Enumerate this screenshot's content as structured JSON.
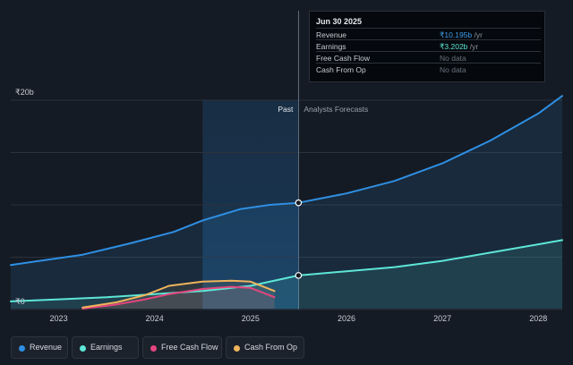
{
  "colors": {
    "background": "#151b24",
    "revenue": "#2f8fe3",
    "earnings": "#5ee6d6",
    "free_cash_flow": "#e4457e",
    "cash_from_op": "#f0b45c",
    "past_highlight": "#1b3d5e"
  },
  "tooltip": {
    "date": "Jun 30 2025",
    "rows": [
      {
        "label": "Revenue",
        "value": "₹10.195b",
        "unit": " /yr"
      },
      {
        "label": "Earnings",
        "value": "₹3.202b",
        "unit": " /yr"
      },
      {
        "label": "Free Cash Flow",
        "value": "No data"
      },
      {
        "label": "Cash From Op",
        "value": "No data"
      }
    ]
  },
  "chart_labels": {
    "past": "Past",
    "forecast": "Analysts Forecasts"
  },
  "legend": [
    {
      "label": "Revenue",
      "color": "#2f8fe3"
    },
    {
      "label": "Earnings",
      "color": "#5ee6d6"
    },
    {
      "label": "Free Cash Flow",
      "color": "#e4457e"
    },
    {
      "label": "Cash From Op",
      "color": "#f0b45c"
    }
  ],
  "chart_data": {
    "type": "line",
    "title": "",
    "xlabel": "",
    "ylabel": "",
    "y_unit": "₹b",
    "ylim": [
      0,
      20
    ],
    "y_ticks": [
      {
        "value": 0,
        "label": "₹0"
      },
      {
        "value": 20,
        "label": "₹20b"
      }
    ],
    "xlim": [
      2022.5,
      2028.25
    ],
    "x_ticks": [
      2023,
      2024,
      2025,
      2026,
      2027,
      2028
    ],
    "x_tick_labels": [
      "2023",
      "2024",
      "2025",
      "2026",
      "2027",
      "2028"
    ],
    "grid": true,
    "past_region": [
      2024.5,
      2025.5
    ],
    "split_x": 2025.5,
    "series": [
      {
        "name": "Revenue",
        "color": "#2f8fe3",
        "area": true,
        "points": [
          [
            2022.5,
            4.2
          ],
          [
            2022.8,
            4.6
          ],
          [
            2023.25,
            5.2
          ],
          [
            2023.75,
            6.3
          ],
          [
            2024.2,
            7.4
          ],
          [
            2024.5,
            8.5
          ],
          [
            2024.9,
            9.6
          ],
          [
            2025.2,
            10.0
          ],
          [
            2025.5,
            10.2
          ]
        ],
        "forecast": [
          [
            2025.5,
            10.2
          ],
          [
            2026.0,
            11.1
          ],
          [
            2026.5,
            12.3
          ],
          [
            2027.0,
            14.0
          ],
          [
            2027.5,
            16.2
          ],
          [
            2028.0,
            18.8
          ],
          [
            2028.25,
            20.5
          ]
        ]
      },
      {
        "name": "Earnings",
        "color": "#5ee6d6",
        "area": true,
        "points": [
          [
            2022.5,
            0.7
          ],
          [
            2023.0,
            0.9
          ],
          [
            2023.5,
            1.1
          ],
          [
            2024.0,
            1.4
          ],
          [
            2024.5,
            1.7
          ],
          [
            2025.0,
            2.2
          ],
          [
            2025.5,
            3.2
          ]
        ],
        "forecast": [
          [
            2025.5,
            3.2
          ],
          [
            2026.0,
            3.6
          ],
          [
            2026.5,
            4.0
          ],
          [
            2027.0,
            4.6
          ],
          [
            2027.5,
            5.4
          ],
          [
            2028.0,
            6.2
          ],
          [
            2028.25,
            6.6
          ]
        ]
      },
      {
        "name": "Free Cash Flow",
        "color": "#e4457e",
        "points": [
          [
            2023.25,
            0.0
          ],
          [
            2023.6,
            0.4
          ],
          [
            2023.9,
            0.9
          ],
          [
            2024.15,
            1.4
          ],
          [
            2024.5,
            1.9
          ],
          [
            2024.8,
            2.1
          ],
          [
            2025.0,
            2.0
          ],
          [
            2025.25,
            1.1
          ]
        ]
      },
      {
        "name": "Cash From Op",
        "color": "#f0b45c",
        "points": [
          [
            2023.25,
            0.1
          ],
          [
            2023.6,
            0.6
          ],
          [
            2023.9,
            1.3
          ],
          [
            2024.15,
            2.2
          ],
          [
            2024.5,
            2.6
          ],
          [
            2024.8,
            2.7
          ],
          [
            2025.0,
            2.6
          ],
          [
            2025.25,
            1.7
          ]
        ]
      }
    ]
  }
}
